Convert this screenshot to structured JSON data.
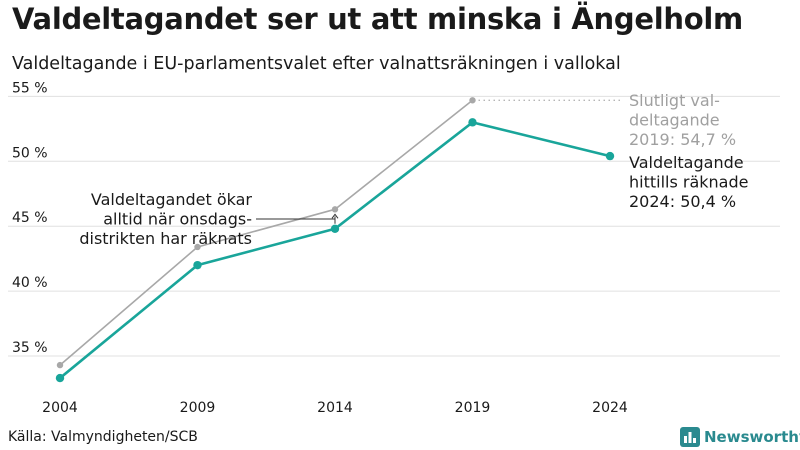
{
  "title": "Valdeltagandet ser ut att minska i Ängelholm",
  "subtitle": "Valdeltagande i EU-parlamentsvalet efter valnattsräkningen i vallokal",
  "source": "Källa: Valmyndigheten/SCB",
  "brand": {
    "name": "Newsworthy",
    "icon": "bar-chart-icon"
  },
  "colors": {
    "preliminary": "#19a59a",
    "final": "#a8a8a8",
    "grid": "#e0e0e0",
    "text": "#1a1a1a",
    "brand": "#2a8a8f"
  },
  "chart_data": {
    "type": "line",
    "categories": [
      "2004",
      "2009",
      "2014",
      "2019",
      "2024"
    ],
    "y_tick_labels": [
      "35 %",
      "40 %",
      "45 %",
      "50 %",
      "55 %"
    ],
    "y_ticks": [
      35,
      40,
      45,
      50,
      55
    ],
    "ylim": [
      33,
      56
    ],
    "grid": true,
    "series": [
      {
        "id": "final",
        "values": [
          34.3,
          43.4,
          46.3,
          54.7,
          null
        ]
      },
      {
        "id": "preliminary",
        "values": [
          33.3,
          42.0,
          44.8,
          53.0,
          50.4
        ]
      }
    ],
    "annotations": {
      "final_label": [
        "Slutligt val-",
        "deltagande",
        "2019: 54,7 %"
      ],
      "preliminary_label": [
        "Valdeltagande",
        "hittills räknade",
        "2024: 50,4 %"
      ],
      "difference_note": [
        "Valdeltagandet ökar",
        "alltid när onsdags-",
        "distrikten har räknats"
      ]
    }
  }
}
